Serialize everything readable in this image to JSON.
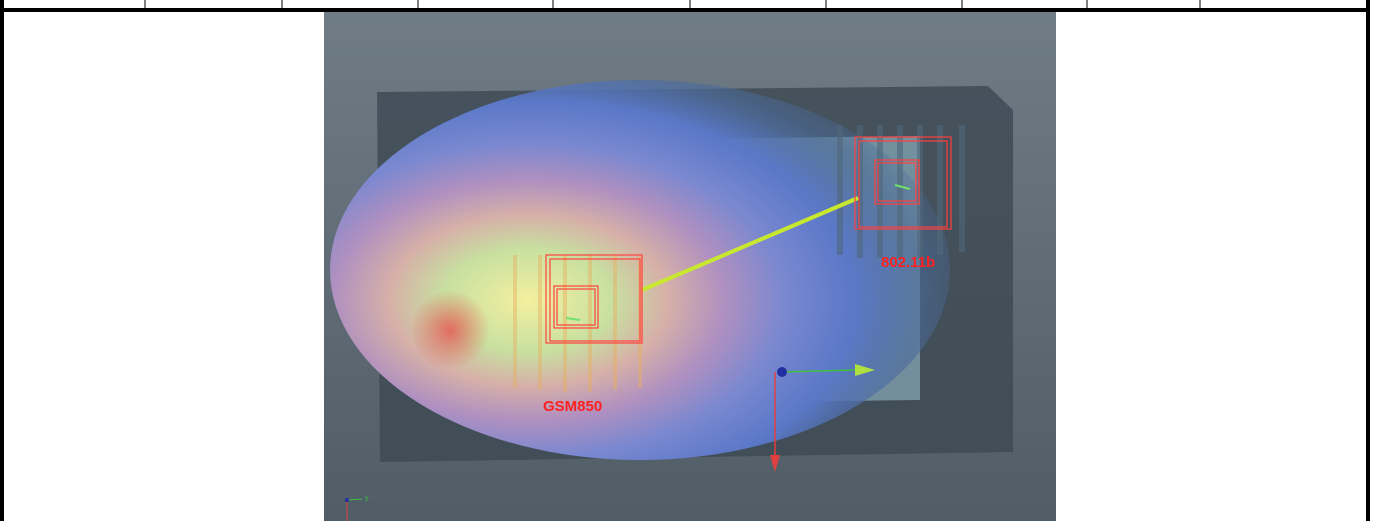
{
  "scene": {
    "labels": [
      "GSM850",
      "802.11b"
    ],
    "triad_axis": "y"
  }
}
